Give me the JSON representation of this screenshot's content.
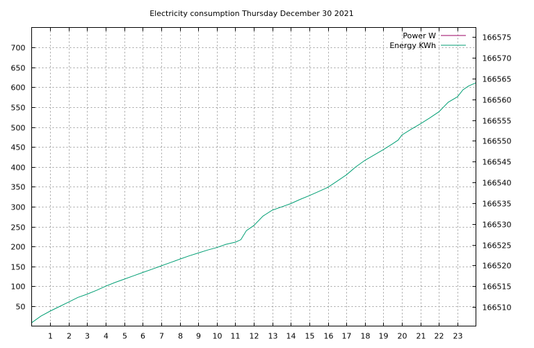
{
  "chart_data": {
    "type": "line",
    "title": "Electricity consumption Thursday December 30 2021",
    "xlabel": "",
    "ylabel": "",
    "y2label": "",
    "x_ticks": [
      1,
      2,
      3,
      4,
      5,
      6,
      7,
      8,
      9,
      10,
      11,
      12,
      13,
      14,
      15,
      16,
      17,
      18,
      19,
      20,
      21,
      22,
      23
    ],
    "xlim": [
      0,
      24
    ],
    "y_ticks": [
      50,
      100,
      150,
      200,
      250,
      300,
      350,
      400,
      450,
      500,
      550,
      600,
      650,
      700
    ],
    "ylim": [
      0,
      750
    ],
    "y2_ticks": [
      166510,
      166515,
      166520,
      166525,
      166530,
      166535,
      166540,
      166545,
      166550,
      166555,
      166560,
      166565,
      166570,
      166575
    ],
    "y2lim": [
      166505.4,
      166577.3
    ],
    "grid": true,
    "legend_position": "top-right",
    "series": [
      {
        "name": "Power W",
        "axis": "y1",
        "color": "#9a0060",
        "x": [],
        "y": []
      },
      {
        "name": "Energy KWh",
        "axis": "y2",
        "color": "#009e73",
        "x": [
          0,
          0.5,
          1,
          1.5,
          2,
          2.5,
          3,
          3.5,
          4,
          4.5,
          5,
          5.5,
          6,
          6.5,
          7,
          7.5,
          8,
          8.5,
          9,
          9.5,
          10,
          10.5,
          11,
          11.3,
          11.6,
          12,
          12.5,
          13,
          13.5,
          14,
          14.5,
          15,
          15.5,
          16,
          16.5,
          17,
          17.5,
          18,
          18.5,
          19,
          19.5,
          19.8,
          20,
          20.5,
          21,
          21.5,
          22,
          22.5,
          23,
          23.3,
          23.6,
          24
        ],
        "y": [
          166506.2,
          166507.8,
          166509.0,
          166510.1,
          166511.2,
          166512.3,
          166513.1,
          166514.0,
          166515.0,
          166515.9,
          166516.7,
          166517.5,
          166518.3,
          166519.1,
          166519.9,
          166520.7,
          166521.5,
          166522.3,
          166523.0,
          166523.7,
          166524.3,
          166525.1,
          166525.6,
          166526.2,
          166528.4,
          166529.6,
          166531.9,
          166533.3,
          166534.1,
          166534.9,
          166535.9,
          166536.8,
          166537.8,
          166538.8,
          166540.3,
          166541.8,
          166543.7,
          166545.3,
          166546.6,
          166547.9,
          166549.3,
          166550.2,
          166551.4,
          166552.8,
          166554.1,
          166555.5,
          166557.0,
          166559.3,
          166560.6,
          166562.3,
          166563.2,
          166564.0
        ]
      }
    ]
  }
}
